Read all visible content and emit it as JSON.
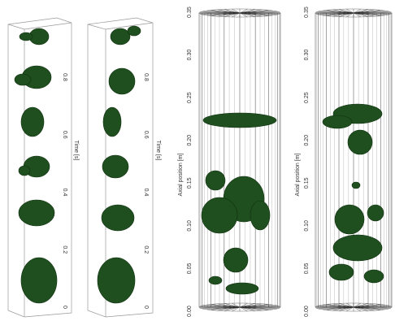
{
  "panels": [
    {
      "axis_title": "Time [s]",
      "tick_labels": [
        "0",
        "0.2",
        "0.4",
        "0.6",
        "0.8"
      ]
    },
    {
      "axis_title": "Time [s]",
      "tick_labels": [
        "0",
        "0.2",
        "0.4",
        "0.6",
        "0.8"
      ]
    },
    {
      "axis_title": "Axial position [m]",
      "tick_labels": [
        "0.00",
        "0.05",
        "0.10",
        "0.15",
        "0.20",
        "0.25",
        "0.30",
        "0.35"
      ]
    },
    {
      "axis_title": "Axial position [m]",
      "tick_labels": [
        "0.00",
        "0.05",
        "0.10",
        "0.15",
        "0.20",
        "0.25",
        "0.30",
        "0.35"
      ]
    }
  ]
}
